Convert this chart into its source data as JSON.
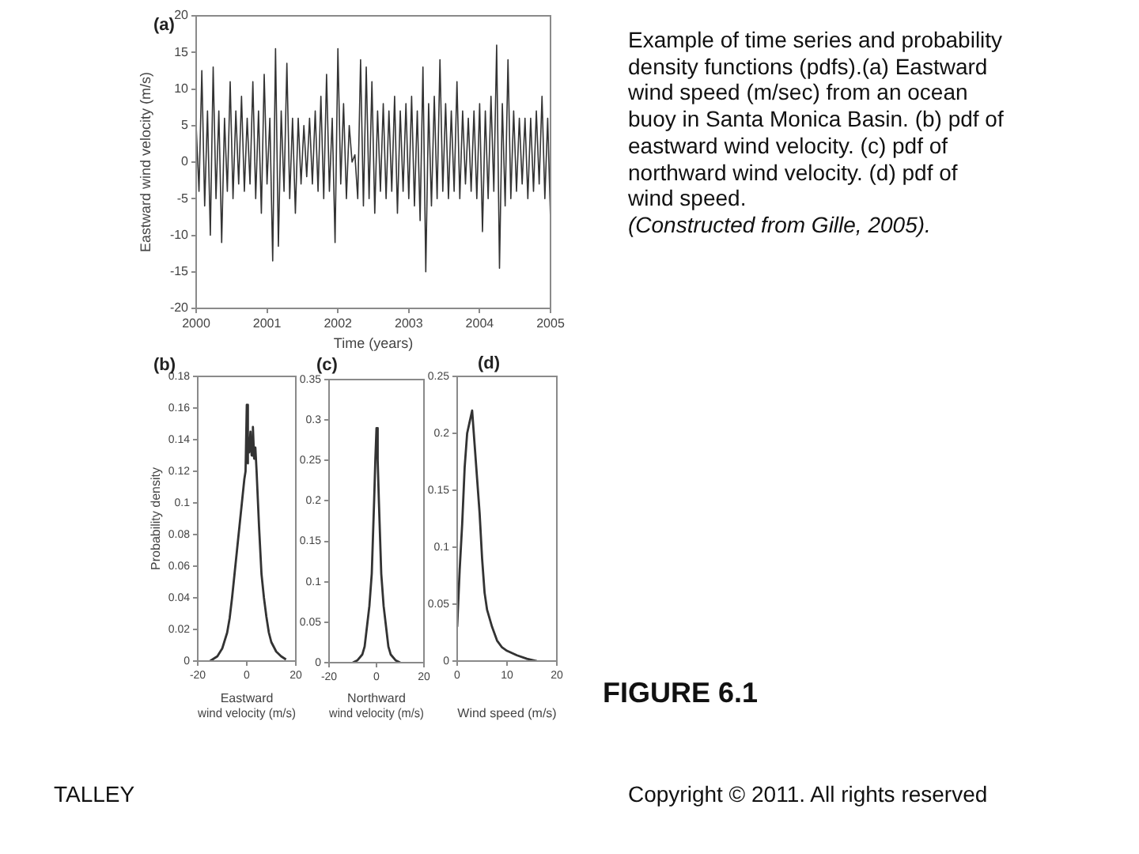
{
  "chart_data": [
    {
      "type": "line",
      "title": "(a)",
      "xlabel": "Time (years)",
      "ylabel": "Eastward wind velocity (m/s)",
      "color": "#333333",
      "x": [
        2000,
        2000.04,
        2000.08,
        2000.12,
        2000.16,
        2000.2,
        2000.24,
        2000.28,
        2000.32,
        2000.36,
        2000.4,
        2000.44,
        2000.48,
        2000.52,
        2000.56,
        2000.6,
        2000.64,
        2000.68,
        2000.72,
        2000.76,
        2000.8,
        2000.84,
        2000.88,
        2000.92,
        2000.96,
        2001,
        2001.04,
        2001.08,
        2001.12,
        2001.16,
        2001.2,
        2001.24,
        2001.28,
        2001.32,
        2001.36,
        2001.4,
        2001.44,
        2001.48,
        2001.52,
        2001.56,
        2001.6,
        2001.64,
        2001.68,
        2001.72,
        2001.76,
        2001.8,
        2001.84,
        2001.88,
        2001.92,
        2001.96,
        2002,
        2002.04,
        2002.08,
        2002.12,
        2002.16,
        2002.2,
        2002.24,
        2002.28,
        2002.32,
        2002.36,
        2002.4,
        2002.44,
        2002.48,
        2002.52,
        2002.56,
        2002.6,
        2002.64,
        2002.68,
        2002.72,
        2002.76,
        2002.8,
        2002.84,
        2002.88,
        2002.92,
        2002.96,
        2003,
        2003.04,
        2003.08,
        2003.12,
        2003.16,
        2003.2,
        2003.24,
        2003.28,
        2003.32,
        2003.36,
        2003.4,
        2003.44,
        2003.48,
        2003.52,
        2003.56,
        2003.6,
        2003.64,
        2003.68,
        2003.72,
        2003.76,
        2003.8,
        2003.84,
        2003.88,
        2003.92,
        2003.96,
        2004,
        2004.04,
        2004.08,
        2004.12,
        2004.16,
        2004.2,
        2004.24,
        2004.28,
        2004.32,
        2004.36,
        2004.4,
        2004.44,
        2004.48,
        2004.52,
        2004.56,
        2004.6,
        2004.64,
        2004.68,
        2004.72,
        2004.76,
        2004.8,
        2004.84,
        2004.88,
        2004.92,
        2004.96,
        2005
      ],
      "values": [
        5,
        -4,
        12.5,
        -6,
        7,
        -10,
        13,
        -5,
        7,
        -11,
        6,
        -4,
        11,
        -5,
        7,
        -3,
        9,
        -4,
        6,
        -3,
        11,
        -5,
        7,
        -7,
        12,
        -3,
        6,
        -13.5,
        15.5,
        -11.5,
        7,
        -4,
        13.5,
        -5,
        6,
        -7,
        6,
        -3,
        5,
        -2,
        6,
        -3,
        7,
        -4,
        9,
        -5,
        12,
        -4,
        6,
        -11,
        15.5,
        -3,
        8,
        -5,
        5,
        0,
        1,
        -5,
        14,
        -6,
        13,
        -5,
        11,
        -7,
        7,
        -4,
        8,
        -5,
        7,
        -4,
        9,
        -7,
        7,
        -4,
        8,
        -5,
        9,
        -6,
        7,
        -8,
        13,
        -15,
        8,
        -6,
        9,
        -5,
        14,
        -4,
        8,
        -5,
        7,
        -4,
        11,
        -5,
        7,
        -3,
        6,
        -4,
        7,
        -5,
        8,
        -9.5,
        7,
        -5,
        9,
        -4,
        16,
        -14.5,
        8,
        -6,
        14,
        -5,
        7,
        -4,
        6,
        -3,
        6,
        -5,
        6,
        -4,
        7,
        -3,
        9,
        -5,
        6,
        -8
      ],
      "xlim": [
        2000,
        2005
      ],
      "xticks": [
        2000,
        2001,
        2002,
        2003,
        2004,
        2005
      ],
      "ylim": [
        -20,
        20
      ],
      "yticks": [
        -20,
        -15,
        -10,
        -5,
        0,
        5,
        10,
        15,
        20
      ],
      "annotations": [
        "Example of time series and probability density functions (pdfs).(a) Eastward wind speed (m/sec) from an ocean buoy in Santa Monica Basin. (b) pdf of eastward wind velocity. (c) pdf of northward wind velocity. (d) pdf of wind speed.",
        "(Constructed from Gille, 2005).",
        "FIGURE 6.1",
        "TALLEY",
        "Copyright © 2011. All rights reserved"
      ]
    },
    {
      "type": "line",
      "title": "(b)",
      "xlabel": "Eastward\nwind velocity (m/s)",
      "ylabel": "Probability density",
      "color": "#333333",
      "x": [
        -15,
        -14,
        -12,
        -10,
        -8,
        -7,
        -6,
        -5,
        -4,
        -3,
        -2,
        -1,
        -0.5,
        0,
        0.3,
        0.6,
        1,
        1.5,
        2,
        2.5,
        3,
        3.5,
        4,
        5,
        6,
        7,
        8,
        9,
        10,
        12,
        14,
        16
      ],
      "values": [
        0,
        0.001,
        0.003,
        0.008,
        0.018,
        0.027,
        0.04,
        0.055,
        0.07,
        0.085,
        0.1,
        0.115,
        0.12,
        0.162,
        0.125,
        0.14,
        0.132,
        0.145,
        0.13,
        0.148,
        0.128,
        0.135,
        0.12,
        0.085,
        0.055,
        0.04,
        0.028,
        0.018,
        0.012,
        0.006,
        0.003,
        0.001
      ],
      "xlim": [
        -20,
        20
      ],
      "xticks": [
        -20,
        0,
        20
      ],
      "ylim": [
        0,
        0.18
      ],
      "yticks": [
        0,
        0.02,
        0.04,
        0.06,
        0.08,
        0.1,
        0.12,
        0.14,
        0.16,
        0.18
      ]
    },
    {
      "type": "line",
      "title": "(c)",
      "xlabel": "Northward\nwind velocity (m/s)",
      "color": "#333333",
      "x": [
        -10,
        -8,
        -6,
        -5,
        -4,
        -3,
        -2,
        -1,
        -0.5,
        0,
        0.5,
        1,
        2,
        3,
        4,
        5,
        6,
        8,
        10
      ],
      "values": [
        0,
        0.003,
        0.01,
        0.02,
        0.045,
        0.07,
        0.11,
        0.2,
        0.25,
        0.29,
        0.25,
        0.2,
        0.11,
        0.07,
        0.045,
        0.02,
        0.01,
        0.003,
        0
      ],
      "xlim": [
        -20,
        20
      ],
      "xticks": [
        -20,
        0,
        20
      ],
      "ylim": [
        0,
        0.35
      ],
      "yticks": [
        0,
        0.05,
        0.1,
        0.15,
        0.2,
        0.25,
        0.3,
        0.35
      ]
    },
    {
      "type": "line",
      "title": "(d)",
      "xlabel": "Wind speed (m/s)",
      "color": "#333333",
      "x": [
        0,
        0.5,
        1,
        1.5,
        2,
        2.5,
        3,
        3.5,
        4,
        4.5,
        5,
        5.5,
        6,
        7,
        8,
        9,
        10,
        12,
        14,
        16
      ],
      "values": [
        0.03,
        0.08,
        0.12,
        0.17,
        0.2,
        0.21,
        0.22,
        0.19,
        0.16,
        0.13,
        0.09,
        0.06,
        0.045,
        0.03,
        0.018,
        0.012,
        0.009,
        0.005,
        0.002,
        0
      ],
      "xlim": [
        0,
        20
      ],
      "xticks": [
        0,
        10,
        20
      ],
      "ylim": [
        0,
        0.25
      ],
      "yticks": [
        0,
        0.05,
        0.1,
        0.15,
        0.2,
        0.25
      ]
    }
  ]
}
